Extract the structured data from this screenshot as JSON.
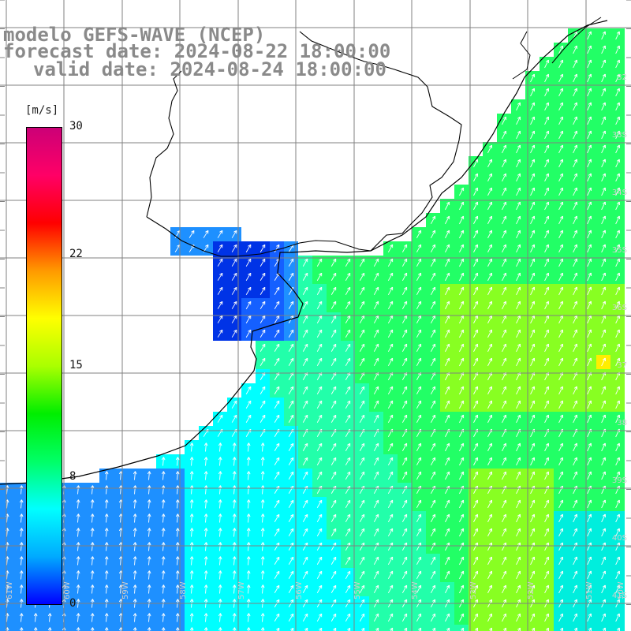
{
  "titles": {
    "line1": "modelo GEFS-WAVE (NCEP)",
    "line2": "forecast date: 2024-08-22 18:00:00",
    "line3": "valid date: 2024-08-24 18:00:00"
  },
  "colorbar": {
    "unit": "[m/s]",
    "ticks": [
      {
        "label": "30",
        "value": 30
      },
      {
        "label": "22",
        "value": 22
      },
      {
        "label": "15",
        "value": 15
      },
      {
        "label": "8",
        "value": 8
      },
      {
        "label": "0",
        "value": 0
      }
    ],
    "min": 0,
    "max": 30,
    "colors": [
      "#0000ff",
      "#00aaff",
      "#00ffff",
      "#00ff66",
      "#00ee00",
      "#aaff00",
      "#ffff00",
      "#ff9900",
      "#ff0000",
      "#ff0066",
      "#cc0077"
    ]
  },
  "map": {
    "lat_labels": [
      "32",
      "33S",
      "34S",
      "35S",
      "36S",
      "37",
      "38",
      "39S",
      "40S",
      "41S"
    ],
    "lon_labels": [
      "61W",
      "60W",
      "59W",
      "58W",
      "57W",
      "56W",
      "55W",
      "54W",
      "53W",
      "52W",
      "51W",
      "50W"
    ],
    "colors": {
      "ocean_dark": "#0033e6",
      "ocean_blue": "#1e90ff",
      "ocean_cyan": "#00ffff",
      "ocean_green": "#22ff66",
      "ocean_lime": "#88ff22",
      "ocean_yellow": "#ffee00",
      "grid": "#808080",
      "coast": "#000000",
      "arrow": "#ffffff"
    }
  }
}
